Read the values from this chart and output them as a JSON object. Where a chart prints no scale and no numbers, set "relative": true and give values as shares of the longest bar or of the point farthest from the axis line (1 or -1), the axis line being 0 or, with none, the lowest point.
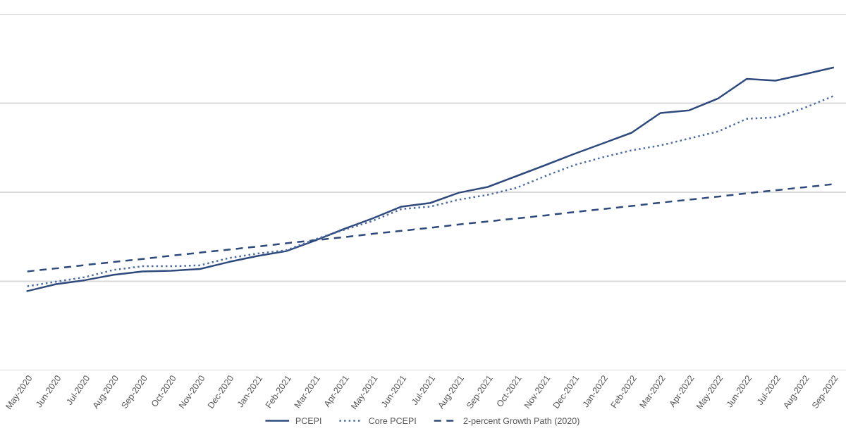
{
  "chart_data": {
    "type": "line",
    "relative": true,
    "grid": "y",
    "legend": "bottom",
    "categories": [
      "May-2020",
      "Jun-2020",
      "Jul-2020",
      "Aug-2020",
      "Sep-2020",
      "Oct-2020",
      "Nov-2020",
      "Dec-2020",
      "Jan-2021",
      "Feb-2021",
      "Mar-2021",
      "Apr-2021",
      "May-2021",
      "Jun-2021",
      "Jul-2021",
      "Aug-2021",
      "Sep-2021",
      "Oct-2021",
      "Nov-2021",
      "Dec-2021",
      "Jan-2022",
      "Feb-2022",
      "Mar-2022",
      "Apr-2022",
      "May-2022",
      "Jun-2022",
      "Jul-2022",
      "Aug-2022",
      "Sep-2022"
    ],
    "series": [
      {
        "name": "PCEPI",
        "color": "#2e4a7d",
        "line_style": "solid",
        "values": [
          0.262,
          0.285,
          0.298,
          0.316,
          0.327,
          0.329,
          0.335,
          0.358,
          0.378,
          0.394,
          0.429,
          0.467,
          0.502,
          0.541,
          0.553,
          0.587,
          0.606,
          0.642,
          0.678,
          0.715,
          0.75,
          0.785,
          0.85,
          0.859,
          0.898,
          0.963,
          0.957,
          0.978,
          1.0
        ]
      },
      {
        "name": "Core PCEPI",
        "color": "#4a6aa5",
        "line_style": "dotted",
        "values": [
          0.278,
          0.293,
          0.308,
          0.332,
          0.344,
          0.344,
          0.347,
          0.371,
          0.386,
          0.397,
          0.433,
          0.464,
          0.494,
          0.533,
          0.541,
          0.564,
          0.58,
          0.603,
          0.642,
          0.678,
          0.704,
          0.727,
          0.743,
          0.766,
          0.789,
          0.831,
          0.836,
          0.867,
          0.906
        ]
      },
      {
        "name": "2-percent Growth Path (2020)",
        "color": "#2e4a7d",
        "line_style": "dashed",
        "values": [
          0.327,
          0.337,
          0.348,
          0.358,
          0.368,
          0.379,
          0.389,
          0.399,
          0.409,
          0.42,
          0.43,
          0.44,
          0.451,
          0.461,
          0.471,
          0.482,
          0.492,
          0.502,
          0.512,
          0.523,
          0.533,
          0.543,
          0.554,
          0.564,
          0.574,
          0.585,
          0.595,
          0.605,
          0.615
        ]
      }
    ]
  }
}
